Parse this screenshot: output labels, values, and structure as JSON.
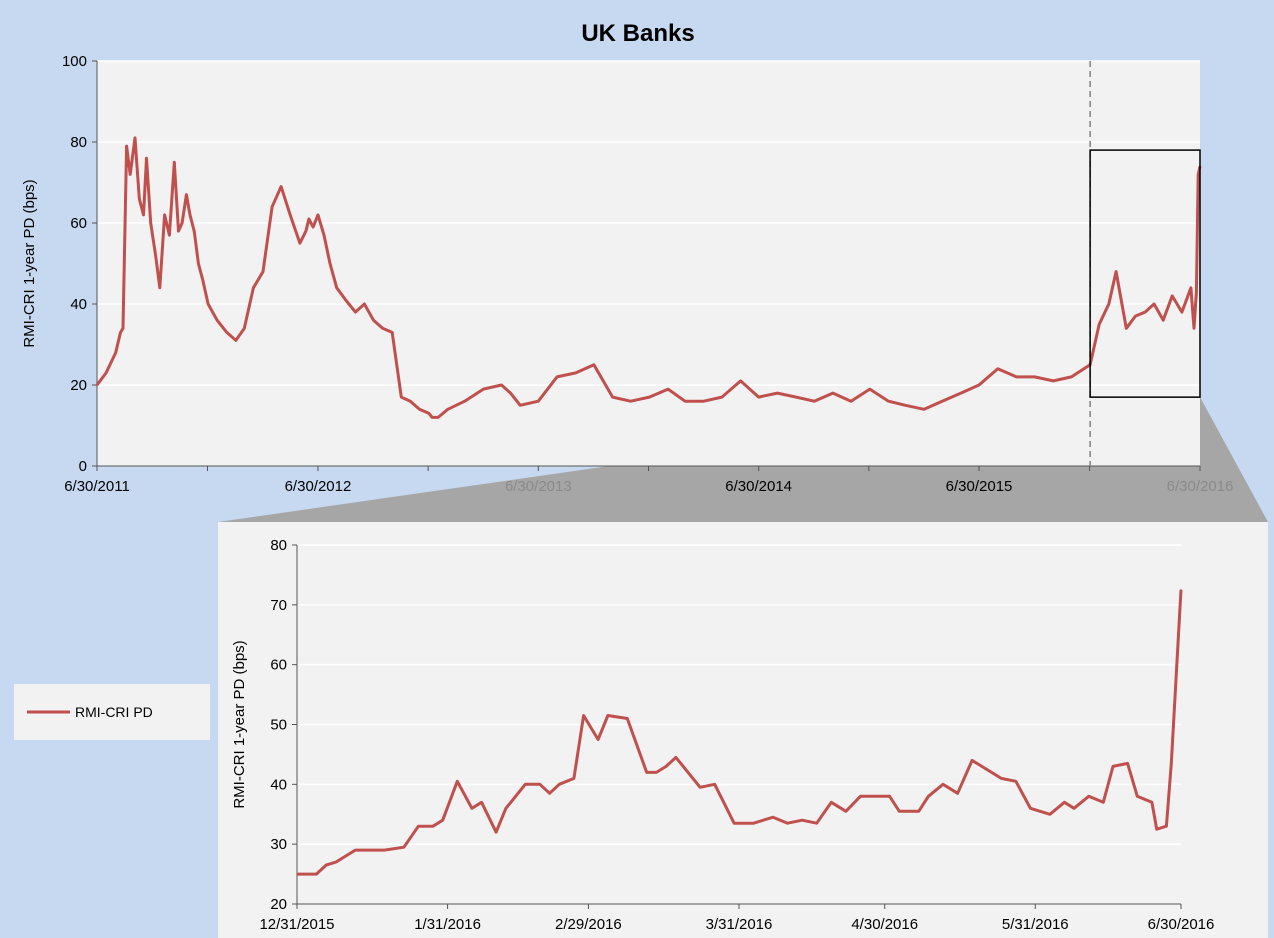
{
  "chart_data": [
    {
      "type": "line",
      "title": "UK Banks",
      "xlabel": "",
      "ylabel": "RMI-CRI  1-year PD (bps)",
      "ylim": [
        0,
        100
      ],
      "yticks": [
        0,
        20,
        40,
        60,
        80,
        100
      ],
      "xlim": [
        "2011-06-30",
        "2016-06-30"
      ],
      "xticks": [
        {
          "date": "2011-06-30",
          "label": "6/30/2011",
          "faint": false
        },
        {
          "date": "2012-06-30",
          "label": "6/30/2012",
          "faint": false
        },
        {
          "date": "2013-06-30",
          "label": "6/30/2013",
          "faint": true
        },
        {
          "date": "2014-06-30",
          "label": "6/30/2014",
          "faint": false
        },
        {
          "date": "2015-06-30",
          "label": "6/30/2015",
          "faint": false
        },
        {
          "date": "2016-06-30",
          "label": "6/30/2016",
          "faint": true
        }
      ],
      "grid": true,
      "color": "#c0504d",
      "highlight": {
        "x_start": "2015-12-31",
        "x_end": "2016-06-30",
        "y_range": [
          17,
          78
        ]
      },
      "series": [
        {
          "name": "RMI-CRI PD",
          "x": [
            "2011-06-30",
            "2011-07-15",
            "2011-07-31",
            "2011-08-08",
            "2011-08-12",
            "2011-08-18",
            "2011-08-24",
            "2011-09-01",
            "2011-09-08",
            "2011-09-15",
            "2011-09-20",
            "2011-09-27",
            "2011-10-05",
            "2011-10-12",
            "2011-10-20",
            "2011-10-28",
            "2011-11-05",
            "2011-11-12",
            "2011-11-18",
            "2011-11-25",
            "2011-12-01",
            "2011-12-08",
            "2011-12-15",
            "2011-12-22",
            "2011-12-31",
            "2012-01-15",
            "2012-01-31",
            "2012-02-15",
            "2012-02-29",
            "2012-03-15",
            "2012-03-31",
            "2012-04-15",
            "2012-04-30",
            "2012-05-15",
            "2012-05-31",
            "2012-06-10",
            "2012-06-15",
            "2012-06-22",
            "2012-06-30",
            "2012-07-10",
            "2012-07-20",
            "2012-07-31",
            "2012-08-15",
            "2012-08-31",
            "2012-09-15",
            "2012-09-30",
            "2012-10-15",
            "2012-10-31",
            "2012-11-15",
            "2012-11-30",
            "2012-12-15",
            "2012-12-31",
            "2013-01-05",
            "2013-01-15",
            "2013-01-31",
            "2013-02-28",
            "2013-03-31",
            "2013-04-30",
            "2013-05-15",
            "2013-05-31",
            "2013-06-30",
            "2013-07-31",
            "2013-08-31",
            "2013-09-30",
            "2013-10-31",
            "2013-11-30",
            "2013-12-31",
            "2014-01-31",
            "2014-02-28",
            "2014-03-31",
            "2014-04-30",
            "2014-05-31",
            "2014-06-30",
            "2014-07-31",
            "2014-08-31",
            "2014-09-30",
            "2014-10-31",
            "2014-11-30",
            "2014-12-31",
            "2015-01-31",
            "2015-02-28",
            "2015-03-31",
            "2015-04-30",
            "2015-05-31",
            "2015-06-30",
            "2015-07-31",
            "2015-08-31",
            "2015-09-30",
            "2015-10-31",
            "2015-11-30",
            "2015-12-31",
            "2016-01-15",
            "2016-01-31",
            "2016-02-12",
            "2016-02-29",
            "2016-03-15",
            "2016-03-31",
            "2016-04-15",
            "2016-04-30",
            "2016-05-15",
            "2016-05-31",
            "2016-06-15",
            "2016-06-20",
            "2016-06-24",
            "2016-06-27",
            "2016-06-30"
          ],
          "values": [
            20,
            23,
            28,
            33,
            34,
            79,
            72,
            81,
            66,
            62,
            76,
            60,
            52,
            44,
            62,
            57,
            75,
            58,
            60,
            67,
            62,
            58,
            50,
            46,
            40,
            36,
            33,
            31,
            34,
            44,
            48,
            64,
            69,
            62,
            55,
            58,
            61,
            59,
            62,
            57,
            50,
            44,
            41,
            38,
            40,
            36,
            34,
            33,
            17,
            16,
            14,
            13,
            12,
            12,
            14,
            16,
            19,
            20,
            18,
            15,
            16,
            22,
            23,
            25,
            17,
            16,
            17,
            19,
            16,
            16,
            17,
            21,
            17,
            18,
            17,
            16,
            18,
            16,
            19,
            16,
            15,
            14,
            16,
            18,
            20,
            24,
            22,
            22,
            21,
            22,
            25,
            35,
            40,
            48,
            34,
            37,
            38,
            40,
            36,
            42,
            38,
            44,
            34,
            43,
            72,
            74
          ]
        }
      ]
    },
    {
      "type": "line",
      "title": "",
      "xlabel": "",
      "ylabel": "RMI-CRI  1-year PD (bps)",
      "ylim": [
        20,
        80
      ],
      "yticks": [
        20,
        30,
        40,
        50,
        60,
        70,
        80
      ],
      "xlim": [
        "2015-12-31",
        "2016-06-30"
      ],
      "xticks": [
        {
          "date": "2015-12-31",
          "label": "12/31/2015"
        },
        {
          "date": "2016-01-31",
          "label": "1/31/2016"
        },
        {
          "date": "2016-02-29",
          "label": "2/29/2016"
        },
        {
          "date": "2016-03-31",
          "label": "3/31/2016"
        },
        {
          "date": "2016-04-30",
          "label": "4/30/2016"
        },
        {
          "date": "2016-05-31",
          "label": "5/31/2016"
        },
        {
          "date": "2016-06-30",
          "label": "6/30/2016"
        }
      ],
      "grid": true,
      "color": "#c0504d",
      "series": [
        {
          "name": "RMI-CRI PD",
          "x": [
            "2015-12-31",
            "2016-01-04",
            "2016-01-06",
            "2016-01-08",
            "2016-01-12",
            "2016-01-14",
            "2016-01-18",
            "2016-01-22",
            "2016-01-25",
            "2016-01-26",
            "2016-01-28",
            "2016-01-30",
            "2016-02-02",
            "2016-02-05",
            "2016-02-07",
            "2016-02-10",
            "2016-02-12",
            "2016-02-16",
            "2016-02-19",
            "2016-02-21",
            "2016-02-23",
            "2016-02-26",
            "2016-02-28",
            "2016-03-02",
            "2016-03-04",
            "2016-03-08",
            "2016-03-12",
            "2016-03-14",
            "2016-03-16",
            "2016-03-18",
            "2016-03-23",
            "2016-03-26",
            "2016-03-30",
            "2016-04-03",
            "2016-04-07",
            "2016-04-10",
            "2016-04-13",
            "2016-04-16",
            "2016-04-19",
            "2016-04-22",
            "2016-04-25",
            "2016-04-28",
            "2016-05-01",
            "2016-05-03",
            "2016-05-07",
            "2016-05-09",
            "2016-05-12",
            "2016-05-15",
            "2016-05-18",
            "2016-05-22",
            "2016-05-24",
            "2016-05-27",
            "2016-05-30",
            "2016-06-03",
            "2016-06-06",
            "2016-06-08",
            "2016-06-11",
            "2016-06-14",
            "2016-06-16",
            "2016-06-19",
            "2016-06-21",
            "2016-06-24",
            "2016-06-25",
            "2016-06-27",
            "2016-06-28",
            "2016-06-30"
          ],
          "values": [
            25,
            25,
            26.5,
            27,
            29,
            29,
            29,
            29.5,
            33,
            33,
            33,
            34,
            40.5,
            36,
            37,
            32,
            36,
            40,
            40,
            38.5,
            40,
            41,
            51.5,
            47.5,
            51.5,
            51,
            42,
            42,
            43,
            44.5,
            39.5,
            40,
            33.5,
            33.5,
            34.5,
            33.5,
            34,
            33.5,
            37,
            35.5,
            38,
            38,
            38,
            35.5,
            35.5,
            38,
            40,
            38.5,
            44,
            42,
            41,
            40.5,
            36,
            35,
            37,
            36,
            38,
            37,
            43,
            43.5,
            38,
            37,
            32.5,
            33,
            43.5,
            72.5
          ]
        }
      ]
    }
  ],
  "legend": {
    "label": "RMI-CRI PD"
  }
}
